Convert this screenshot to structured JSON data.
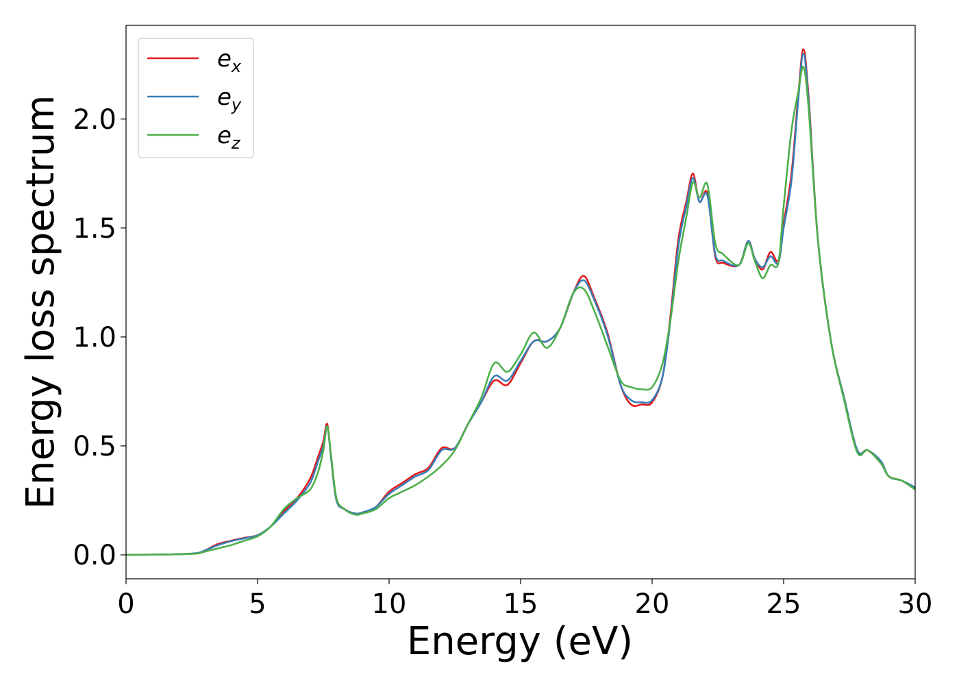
{
  "chart_data": {
    "type": "line",
    "xlabel": "Energy (eV)",
    "ylabel": "Energy loss spectrum",
    "xlim": [
      0,
      30
    ],
    "ylim": [
      -0.11,
      2.43
    ],
    "xticks": [
      0,
      5,
      10,
      15,
      20,
      25,
      30
    ],
    "xtick_labels": [
      "0",
      "5",
      "10",
      "15",
      "20",
      "25",
      "30"
    ],
    "yticks": [
      0.0,
      0.5,
      1.0,
      1.5,
      2.0
    ],
    "ytick_labels": [
      "0.0",
      "0.5",
      "1.0",
      "1.5",
      "2.0"
    ],
    "grid": false,
    "legend_position": "top-left",
    "series": [
      {
        "name": "e",
        "subscript": "x",
        "color": "#e41a1c",
        "x": [
          0,
          1,
          2,
          2.7,
          3,
          3.5,
          4,
          4.5,
          5,
          5.5,
          6,
          6.5,
          7,
          7.3,
          7.5,
          7.65,
          7.8,
          8,
          8.3,
          8.7,
          9,
          9.5,
          10,
          10.5,
          11,
          11.5,
          12,
          12.5,
          13,
          13.5,
          14,
          14.5,
          15,
          15.5,
          16,
          16.5,
          17,
          17.4,
          17.8,
          18.3,
          18.8,
          19.2,
          19.6,
          20,
          20.4,
          20.7,
          21,
          21.3,
          21.55,
          21.8,
          22.1,
          22.4,
          22.7,
          23.3,
          23.65,
          23.9,
          24.2,
          24.5,
          24.8,
          25,
          25.3,
          25.55,
          25.75,
          25.95,
          26.3,
          26.8,
          27.3,
          27.8,
          28.2,
          28.7,
          29,
          29.5,
          30
        ],
        "values": [
          0,
          0.001,
          0.003,
          0.008,
          0.02,
          0.05,
          0.065,
          0.078,
          0.09,
          0.13,
          0.2,
          0.26,
          0.35,
          0.45,
          0.52,
          0.6,
          0.44,
          0.25,
          0.21,
          0.19,
          0.195,
          0.22,
          0.29,
          0.33,
          0.37,
          0.4,
          0.49,
          0.49,
          0.6,
          0.7,
          0.8,
          0.78,
          0.88,
          0.98,
          0.98,
          1.04,
          1.2,
          1.28,
          1.18,
          1.02,
          0.78,
          0.69,
          0.69,
          0.7,
          0.82,
          1.1,
          1.45,
          1.62,
          1.75,
          1.62,
          1.66,
          1.37,
          1.34,
          1.33,
          1.44,
          1.36,
          1.31,
          1.39,
          1.35,
          1.52,
          1.75,
          2.1,
          2.32,
          2.1,
          1.45,
          0.98,
          0.72,
          0.48,
          0.48,
          0.42,
          0.36,
          0.34,
          0.3
        ]
      },
      {
        "name": "e",
        "subscript": "y",
        "color": "#377eb8",
        "x": [
          0,
          1,
          2,
          2.7,
          3,
          3.5,
          4,
          4.5,
          5,
          5.5,
          6,
          6.5,
          7,
          7.3,
          7.5,
          7.65,
          7.8,
          8,
          8.3,
          8.7,
          9,
          9.5,
          10,
          10.5,
          11,
          11.5,
          12,
          12.5,
          13,
          13.5,
          14,
          14.5,
          15,
          15.5,
          16,
          16.5,
          17,
          17.4,
          17.8,
          18.3,
          18.8,
          19.2,
          19.6,
          20,
          20.4,
          20.7,
          21,
          21.3,
          21.55,
          21.8,
          22.1,
          22.4,
          22.7,
          23.3,
          23.65,
          23.9,
          24.2,
          24.5,
          24.8,
          25,
          25.3,
          25.55,
          25.75,
          25.95,
          26.3,
          26.8,
          27.3,
          27.8,
          28.2,
          28.7,
          29,
          29.5,
          30
        ],
        "values": [
          0,
          0.001,
          0.003,
          0.008,
          0.02,
          0.045,
          0.063,
          0.076,
          0.09,
          0.13,
          0.19,
          0.25,
          0.33,
          0.43,
          0.5,
          0.59,
          0.44,
          0.25,
          0.21,
          0.19,
          0.195,
          0.22,
          0.28,
          0.32,
          0.36,
          0.39,
          0.48,
          0.49,
          0.6,
          0.7,
          0.82,
          0.8,
          0.89,
          0.98,
          0.98,
          1.04,
          1.2,
          1.26,
          1.17,
          1.01,
          0.78,
          0.71,
          0.7,
          0.71,
          0.82,
          1.08,
          1.42,
          1.6,
          1.73,
          1.62,
          1.65,
          1.38,
          1.35,
          1.33,
          1.44,
          1.36,
          1.32,
          1.37,
          1.34,
          1.5,
          1.72,
          2.08,
          2.3,
          2.08,
          1.45,
          0.98,
          0.72,
          0.48,
          0.48,
          0.43,
          0.36,
          0.34,
          0.31
        ]
      },
      {
        "name": "e",
        "subscript": "z",
        "color": "#4daf4a",
        "x": [
          0,
          1,
          2,
          2.7,
          3,
          3.5,
          4,
          4.5,
          5,
          5.5,
          6,
          6.5,
          7,
          7.3,
          7.5,
          7.65,
          7.8,
          8,
          8.3,
          8.7,
          9,
          9.5,
          10,
          10.5,
          11,
          11.5,
          12,
          12.5,
          13,
          13.5,
          14,
          14.5,
          15,
          15.5,
          16,
          16.5,
          17,
          17.4,
          17.8,
          18.3,
          18.8,
          19.2,
          19.6,
          20,
          20.4,
          20.7,
          21,
          21.3,
          21.55,
          21.8,
          22.1,
          22.4,
          22.7,
          23.3,
          23.65,
          23.9,
          24.2,
          24.5,
          24.8,
          25,
          25.3,
          25.55,
          25.75,
          25.95,
          26.3,
          26.8,
          27.3,
          27.8,
          28.2,
          28.7,
          29,
          29.5,
          30
        ],
        "values": [
          0,
          0.001,
          0.003,
          0.006,
          0.015,
          0.03,
          0.045,
          0.065,
          0.085,
          0.13,
          0.21,
          0.26,
          0.3,
          0.38,
          0.48,
          0.59,
          0.45,
          0.26,
          0.21,
          0.185,
          0.19,
          0.21,
          0.26,
          0.29,
          0.32,
          0.36,
          0.41,
          0.48,
          0.6,
          0.72,
          0.88,
          0.84,
          0.92,
          1.02,
          0.95,
          1.04,
          1.2,
          1.22,
          1.12,
          0.96,
          0.8,
          0.77,
          0.76,
          0.77,
          0.88,
          1.08,
          1.35,
          1.55,
          1.71,
          1.64,
          1.7,
          1.43,
          1.38,
          1.33,
          1.43,
          1.35,
          1.27,
          1.33,
          1.34,
          1.6,
          1.95,
          2.12,
          2.24,
          2.05,
          1.45,
          0.98,
          0.71,
          0.47,
          0.48,
          0.42,
          0.36,
          0.34,
          0.3
        ]
      }
    ]
  }
}
